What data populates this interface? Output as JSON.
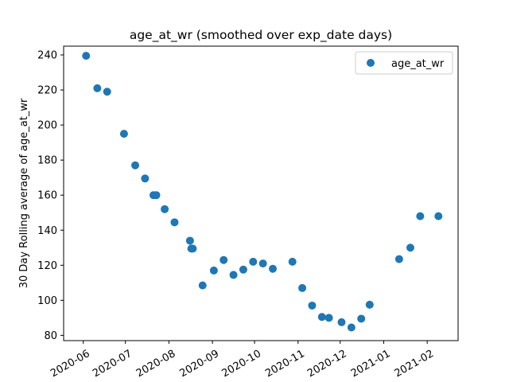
{
  "chart_data": {
    "type": "scatter",
    "title": "age_at_wr (smoothed over exp_date days)",
    "xlabel": "",
    "ylabel": "30 Day Rolling average of age_at_wr",
    "x_type": "date",
    "xlim": [
      "2020-05-18",
      "2021-02-23"
    ],
    "ylim": [
      77,
      245
    ],
    "x_ticks": [
      "2020-06-01",
      "2020-07-01",
      "2020-08-01",
      "2020-09-01",
      "2020-10-01",
      "2020-11-01",
      "2020-12-01",
      "2021-01-01",
      "2021-02-01"
    ],
    "x_tick_labels": [
      "2020-06",
      "2020-07",
      "2020-08",
      "2020-09",
      "2020-10",
      "2020-11",
      "2020-12",
      "2021-01",
      "2021-02"
    ],
    "y_ticks": [
      80,
      100,
      120,
      140,
      160,
      180,
      200,
      220,
      240
    ],
    "y_tick_labels": [
      "80",
      "100",
      "120",
      "140",
      "160",
      "180",
      "200",
      "220",
      "240"
    ],
    "legend": {
      "position": "top-right",
      "entries": [
        "age_at_wr"
      ]
    },
    "grid": false,
    "series": [
      {
        "name": "age_at_wr",
        "color": "#1f77b4",
        "points": [
          {
            "x": "2020-06-03",
            "y": 239.5
          },
          {
            "x": "2020-06-11",
            "y": 221
          },
          {
            "x": "2020-06-18",
            "y": 219
          },
          {
            "x": "2020-06-30",
            "y": 195
          },
          {
            "x": "2020-07-08",
            "y": 177
          },
          {
            "x": "2020-07-15",
            "y": 169.5
          },
          {
            "x": "2020-07-21",
            "y": 160
          },
          {
            "x": "2020-07-23",
            "y": 160
          },
          {
            "x": "2020-07-29",
            "y": 152
          },
          {
            "x": "2020-08-05",
            "y": 144.5
          },
          {
            "x": "2020-08-16",
            "y": 134
          },
          {
            "x": "2020-08-17",
            "y": 129.5
          },
          {
            "x": "2020-08-18",
            "y": 129.5
          },
          {
            "x": "2020-08-25",
            "y": 108.5
          },
          {
            "x": "2020-09-02",
            "y": 117
          },
          {
            "x": "2020-09-09",
            "y": 123
          },
          {
            "x": "2020-09-16",
            "y": 114.5
          },
          {
            "x": "2020-09-23",
            "y": 117.5
          },
          {
            "x": "2020-09-30",
            "y": 122
          },
          {
            "x": "2020-10-07",
            "y": 121
          },
          {
            "x": "2020-10-14",
            "y": 118
          },
          {
            "x": "2020-10-28",
            "y": 122
          },
          {
            "x": "2020-11-04",
            "y": 107
          },
          {
            "x": "2020-11-11",
            "y": 97
          },
          {
            "x": "2020-11-18",
            "y": 90.5
          },
          {
            "x": "2020-11-23",
            "y": 90
          },
          {
            "x": "2020-12-02",
            "y": 87.5
          },
          {
            "x": "2020-12-09",
            "y": 84.5
          },
          {
            "x": "2020-12-16",
            "y": 89.5
          },
          {
            "x": "2020-12-22",
            "y": 97.5
          },
          {
            "x": "2021-01-12",
            "y": 123.5
          },
          {
            "x": "2021-01-20",
            "y": 130
          },
          {
            "x": "2021-01-27",
            "y": 148
          },
          {
            "x": "2021-02-09",
            "y": 148
          }
        ]
      }
    ]
  }
}
